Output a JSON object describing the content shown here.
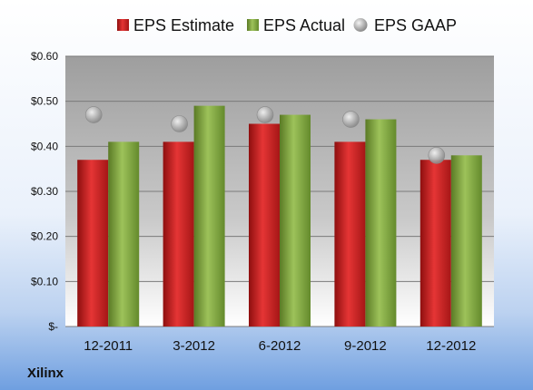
{
  "chart_data": {
    "type": "bar",
    "categories": [
      "12-2011",
      "3-2012",
      "6-2012",
      "9-2012",
      "12-2012"
    ],
    "series": [
      {
        "name": "EPS Estimate",
        "type": "bar",
        "color": "#cc1f1f",
        "values": [
          0.37,
          0.41,
          0.45,
          0.41,
          0.37
        ]
      },
      {
        "name": "EPS Actual",
        "type": "bar",
        "color": "#7fa23b",
        "values": [
          0.41,
          0.49,
          0.47,
          0.46,
          0.38
        ]
      },
      {
        "name": "EPS GAAP",
        "type": "scatter",
        "color": "#b8b8b8",
        "values": [
          0.47,
          0.45,
          0.47,
          0.46,
          0.38
        ]
      }
    ],
    "yticks": [
      "$-",
      "$0.10",
      "$0.20",
      "$0.30",
      "$0.40",
      "$0.50",
      "$0.60"
    ],
    "ylim": [
      0,
      0.6
    ],
    "grid": true,
    "legend": "top",
    "title": "",
    "xlabel": "",
    "ylabel": ""
  },
  "footer": {
    "company": "Xilinx"
  }
}
